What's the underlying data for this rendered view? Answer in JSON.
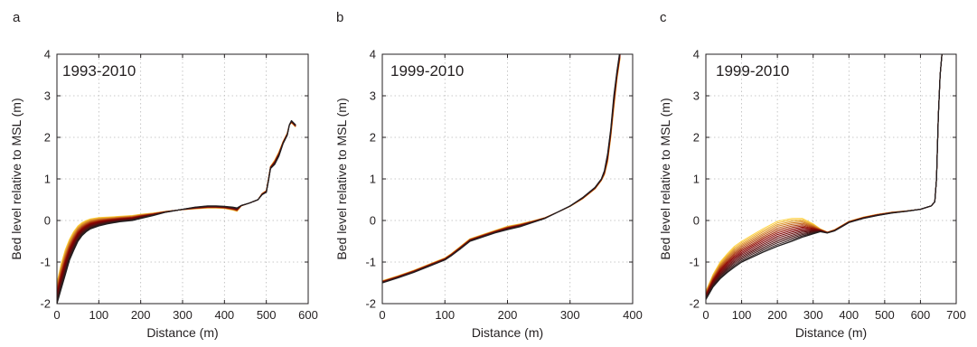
{
  "chart_data": [
    {
      "type": "line",
      "panel_letter": "a",
      "annotation": "1993-2010",
      "xlabel": "Distance (m)",
      "ylabel": "Bed level relative to MSL (m)",
      "xlim": [
        0,
        600
      ],
      "ylim": [
        -2,
        4
      ],
      "xticks": [
        "0",
        "100",
        "200",
        "300",
        "400",
        "500",
        "600"
      ],
      "yticks": [
        "-2",
        "-1",
        "0",
        "1",
        "2",
        "3",
        "4"
      ],
      "grid": true,
      "legend": "none",
      "line_count": 18,
      "color_ramp": [
        "#ffd23c",
        "#8b0000",
        "#231f20"
      ],
      "profile": {
        "x": [
          0,
          10,
          20,
          30,
          40,
          50,
          60,
          70,
          80,
          100,
          120,
          150,
          180,
          200,
          230,
          260,
          300,
          330,
          360,
          380,
          400,
          420,
          430,
          440,
          460,
          480,
          490,
          500,
          505,
          510,
          520,
          530,
          540,
          550,
          555,
          560,
          570
        ],
        "y": [
          -2.0,
          -1.65,
          -1.3,
          -0.95,
          -0.72,
          -0.5,
          -0.36,
          -0.27,
          -0.2,
          -0.13,
          -0.08,
          -0.03,
          0.0,
          0.05,
          0.12,
          0.2,
          0.27,
          0.32,
          0.35,
          0.35,
          0.34,
          0.32,
          0.3,
          0.36,
          0.42,
          0.5,
          0.62,
          0.68,
          0.95,
          1.25,
          1.35,
          1.55,
          1.85,
          2.05,
          2.3,
          2.4,
          2.3
        ]
      },
      "envelope_light": {
        "x": [
          0,
          10,
          20,
          30,
          40,
          50,
          60,
          70,
          80,
          100,
          120,
          150,
          180,
          200,
          230,
          260,
          300,
          330,
          360,
          380,
          400,
          420,
          430,
          440,
          460,
          480,
          490,
          500,
          505,
          510,
          520,
          530,
          540,
          550,
          555,
          560,
          570
        ],
        "y": [
          -1.5,
          -1.05,
          -0.7,
          -0.45,
          -0.27,
          -0.13,
          -0.05,
          0.0,
          0.04,
          0.07,
          0.08,
          0.1,
          0.12,
          0.15,
          0.18,
          0.22,
          0.26,
          0.28,
          0.3,
          0.3,
          0.29,
          0.25,
          0.22,
          0.35,
          0.42,
          0.5,
          0.65,
          0.72,
          1.0,
          1.3,
          1.45,
          1.65,
          1.9,
          2.1,
          2.3,
          2.35,
          2.25
        ]
      }
    },
    {
      "type": "line",
      "panel_letter": "b",
      "annotation": "1999-2010",
      "xlabel": "Distance (m)",
      "ylabel": "Bed level relative to MSL (m)",
      "xlim": [
        0,
        400
      ],
      "ylim": [
        -2,
        4
      ],
      "xticks": [
        "0",
        "100",
        "200",
        "300",
        "400"
      ],
      "yticks": [
        "-2",
        "-1",
        "0",
        "1",
        "2",
        "3",
        "4"
      ],
      "grid": true,
      "legend": "none",
      "line_count": 12,
      "color_ramp": [
        "#ffd23c",
        "#8b0000",
        "#231f20"
      ],
      "profile": {
        "x": [
          0,
          25,
          50,
          75,
          100,
          110,
          125,
          140,
          160,
          180,
          200,
          220,
          240,
          260,
          280,
          300,
          320,
          340,
          350,
          355,
          360,
          365,
          370,
          375,
          380
        ],
        "y": [
          -1.5,
          -1.38,
          -1.25,
          -1.1,
          -0.95,
          -0.85,
          -0.68,
          -0.5,
          -0.4,
          -0.3,
          -0.22,
          -0.15,
          -0.05,
          0.05,
          0.2,
          0.35,
          0.55,
          0.8,
          1.0,
          1.2,
          1.6,
          2.2,
          3.0,
          3.6,
          4.1
        ]
      },
      "envelope_light": {
        "x": [
          0,
          25,
          50,
          75,
          100,
          110,
          125,
          140,
          160,
          180,
          200,
          220,
          240,
          260,
          280,
          300,
          320,
          340,
          350,
          355,
          360,
          365,
          370,
          375,
          380
        ],
        "y": [
          -1.45,
          -1.33,
          -1.2,
          -1.05,
          -0.9,
          -0.8,
          -0.62,
          -0.44,
          -0.34,
          -0.24,
          -0.14,
          -0.08,
          -0.01,
          0.07,
          0.2,
          0.34,
          0.52,
          0.76,
          0.96,
          1.1,
          1.4,
          2.0,
          2.7,
          3.4,
          3.9
        ]
      }
    },
    {
      "type": "line",
      "panel_letter": "c",
      "annotation": "1999-2010",
      "xlabel": "Distance (m)",
      "ylabel": "Bed level relative to MSL (m)",
      "xlim": [
        0,
        700
      ],
      "ylim": [
        -2,
        4
      ],
      "xticks": [
        "0",
        "100",
        "200",
        "300",
        "400",
        "500",
        "600",
        "700"
      ],
      "yticks": [
        "-2",
        "-1",
        "0",
        "1",
        "2",
        "3",
        "4"
      ],
      "grid": true,
      "legend": "none",
      "line_count": 16,
      "color_ramp": [
        "#ffd23c",
        "#8b0000",
        "#231f20"
      ],
      "profile": {
        "x": [
          0,
          20,
          40,
          60,
          80,
          100,
          130,
          160,
          200,
          240,
          270,
          300,
          320,
          340,
          360,
          380,
          400,
          440,
          480,
          520,
          560,
          600,
          630,
          640,
          645,
          650,
          655,
          660
        ],
        "y": [
          -1.9,
          -1.6,
          -1.4,
          -1.25,
          -1.12,
          -1.0,
          -0.88,
          -0.76,
          -0.62,
          -0.5,
          -0.4,
          -0.32,
          -0.27,
          -0.3,
          -0.25,
          -0.15,
          -0.05,
          0.05,
          0.12,
          0.18,
          0.22,
          0.27,
          0.35,
          0.45,
          1.0,
          2.5,
          3.5,
          4.0
        ]
      },
      "envelope_light": {
        "x": [
          0,
          20,
          40,
          60,
          80,
          100,
          130,
          160,
          200,
          240,
          270,
          300,
          320,
          340,
          360,
          380,
          400,
          440,
          480,
          520,
          560,
          600,
          630,
          640,
          645,
          650,
          655,
          660
        ],
        "y": [
          -1.7,
          -1.3,
          -1.0,
          -0.8,
          -0.62,
          -0.5,
          -0.35,
          -0.2,
          -0.02,
          0.05,
          0.05,
          -0.08,
          -0.2,
          -0.28,
          -0.22,
          -0.12,
          -0.02,
          0.08,
          0.15,
          0.2,
          0.23,
          0.27,
          0.35,
          0.45,
          1.0,
          2.5,
          3.5,
          4.0
        ]
      }
    }
  ]
}
